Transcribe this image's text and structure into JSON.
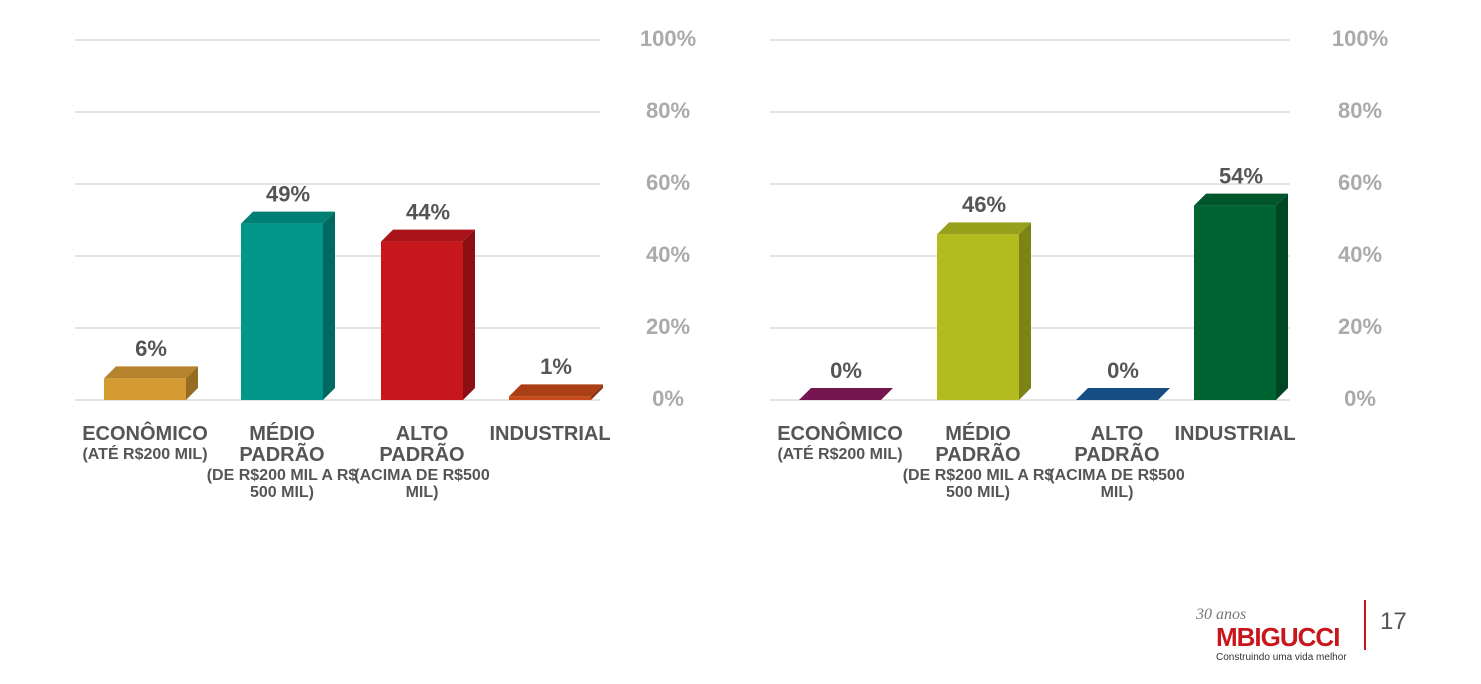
{
  "chart_data": [
    {
      "type": "bar",
      "categories": [
        "ECONÔMICO",
        "MÉDIO PADRÃO",
        "ALTO PADRÃO",
        "INDUSTRIAL"
      ],
      "category_details": [
        "(ATÉ R$200 MIL)",
        "(DE R$200 MIL A R$ 500 MIL)",
        "(ACIMA DE R$500 MIL)",
        null
      ],
      "values": [
        6,
        49,
        44,
        1
      ],
      "value_labels": [
        "6%",
        "49%",
        "44%",
        "1%"
      ],
      "colors": [
        "#d49a32",
        "#00968a",
        "#c8161d",
        "#c84a1a"
      ],
      "ylim": [
        0,
        100
      ],
      "yticks": [
        {
          "value": 0,
          "label": "0%"
        },
        {
          "value": 20,
          "label": "20%"
        },
        {
          "value": 40,
          "label": "40%"
        },
        {
          "value": 60,
          "label": "60%"
        },
        {
          "value": 80,
          "label": "80%"
        },
        {
          "value": 100,
          "label": "100%"
        }
      ],
      "grid": true
    },
    {
      "type": "bar",
      "categories": [
        "ECONÔMICO",
        "MÉDIO PADRÃO",
        "ALTO PADRÃO",
        "INDUSTRIAL"
      ],
      "category_details": [
        "(ATÉ R$200 MIL)",
        "(DE R$200 MIL A R$ 500 MIL)",
        "(ACIMA DE R$500 MIL)",
        null
      ],
      "values": [
        0,
        46,
        0,
        54
      ],
      "value_labels": [
        "0%",
        "46%",
        "0%",
        "54%"
      ],
      "colors": [
        "#8a1a5e",
        "#b2bc1e",
        "#1a5a9a",
        "#006432"
      ],
      "ylim": [
        0,
        100
      ],
      "yticks": [
        {
          "value": 0,
          "label": "0%"
        },
        {
          "value": 20,
          "label": "20%"
        },
        {
          "value": 40,
          "label": "40%"
        },
        {
          "value": 60,
          "label": "60%"
        },
        {
          "value": 80,
          "label": "80%"
        },
        {
          "value": 100,
          "label": "100%"
        }
      ],
      "grid": true
    }
  ],
  "footer": {
    "anniversary": "30 anos",
    "brand": "MBIGUCCI",
    "tagline": "Construindo uma vida melhor",
    "page_number": 17
  }
}
